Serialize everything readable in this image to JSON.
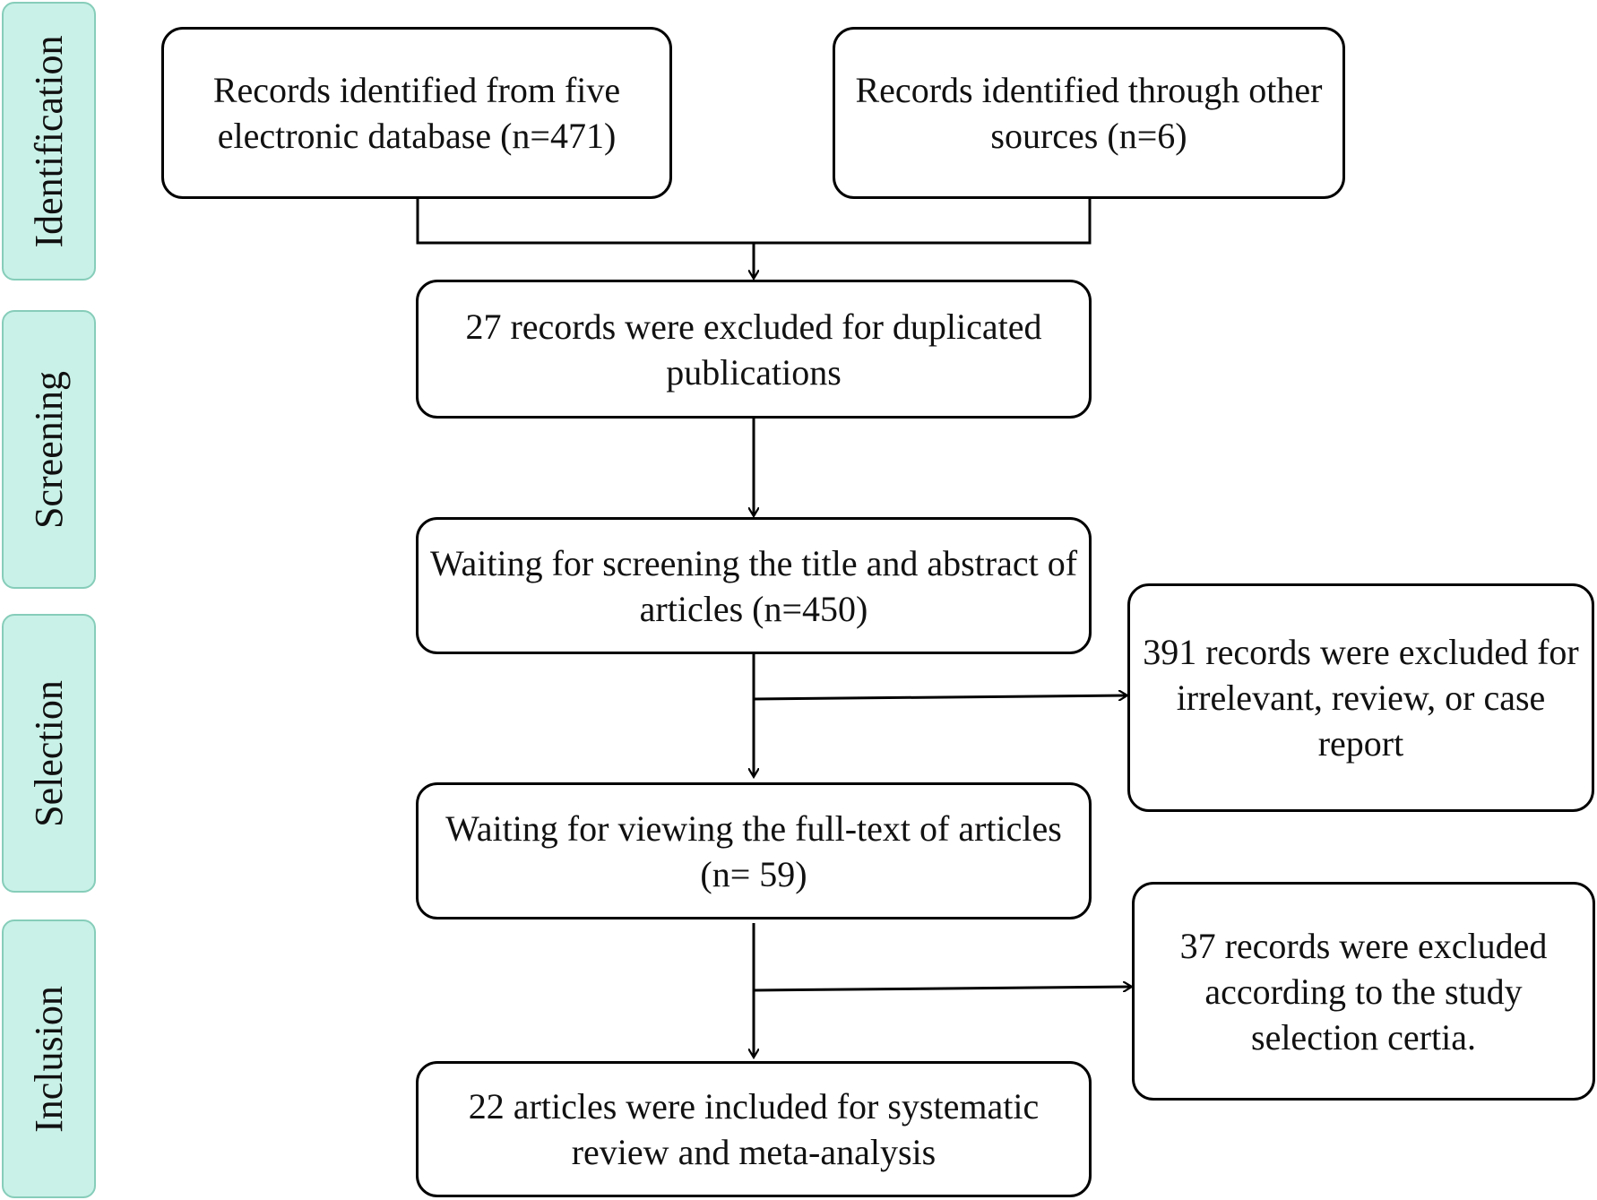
{
  "stages": {
    "identification": "Identification",
    "screening": "Screening",
    "selection": "Selection",
    "inclusion": "Inclusion"
  },
  "boxes": {
    "database_records": "Records identified from five electronic database (n=471)",
    "other_sources": "Records identified through other sources (n=6)",
    "duplicates_excluded": "27 records were excluded for duplicated publications",
    "title_abstract_screening": "Waiting for screening the title and abstract of  articles (n=450)",
    "irrelevant_excluded": "391 records were excluded for irrelevant, review, or case report",
    "full_text_review": "Waiting for viewing the full-text of articles (n= 59)",
    "criteria_excluded": "37 records were excluded according to the study selection certia.",
    "included": "22 articles  were included for systematic review and meta-analysis"
  },
  "colors": {
    "stage_fill": "#c9f1e7",
    "stage_border": "#86cdb9",
    "box_border": "#000000"
  }
}
